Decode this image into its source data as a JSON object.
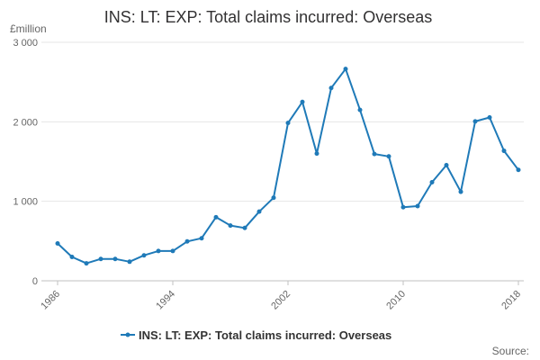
{
  "chart_data": {
    "type": "line",
    "title": "INS: LT: EXP: Total claims incurred: Overseas",
    "unit_label": "£million",
    "y_ticks": [
      {
        "value": 0,
        "label": "0"
      },
      {
        "value": 1000,
        "label": "1 000"
      },
      {
        "value": 2000,
        "label": "2 000"
      },
      {
        "value": 3000,
        "label": "3 000"
      }
    ],
    "x_ticks": [
      "1986",
      "1994",
      "2002",
      "2010",
      "2018"
    ],
    "ylim": [
      0,
      3000
    ],
    "xlim": [
      1986,
      2018
    ],
    "grid": true,
    "legend_position": "bottom",
    "color": "#1f7ab8",
    "series": [
      {
        "name": "INS: LT: EXP: Total claims incurred: Overseas",
        "x": [
          1986,
          1987,
          1988,
          1989,
          1990,
          1991,
          1992,
          1993,
          1994,
          1995,
          1996,
          1997,
          1998,
          1999,
          2000,
          2001,
          2002,
          2003,
          2004,
          2005,
          2006,
          2007,
          2008,
          2009,
          2010,
          2011,
          2012,
          2013,
          2014,
          2015,
          2016,
          2017,
          2018
        ],
        "values": [
          470,
          300,
          220,
          275,
          275,
          240,
          320,
          375,
          375,
          495,
          535,
          800,
          695,
          665,
          870,
          1045,
          1985,
          2250,
          1600,
          2425,
          2665,
          2150,
          1595,
          1565,
          925,
          940,
          1240,
          1455,
          1120,
          2005,
          2055,
          1635,
          1395
        ]
      }
    ],
    "source_label": "Source:"
  }
}
